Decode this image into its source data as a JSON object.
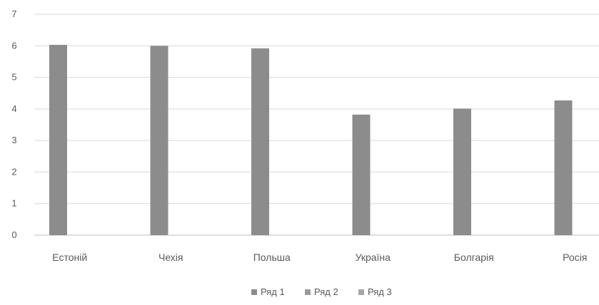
{
  "chart_data": {
    "type": "bar",
    "title": "",
    "xlabel": "",
    "ylabel": "",
    "categories": [
      "Естоній",
      "Чехія",
      "Польша",
      "Україна",
      "Болгарія",
      "Росія"
    ],
    "series": [
      {
        "name": "Ряд 1",
        "values": [
          6.03,
          6.0,
          5.92,
          3.82,
          4.01,
          4.27
        ]
      },
      {
        "name": "Ряд 2",
        "values": [
          null,
          null,
          null,
          null,
          null,
          null
        ]
      },
      {
        "name": "Ряд 3",
        "values": [
          null,
          null,
          null,
          null,
          null,
          null
        ]
      }
    ],
    "ylim": [
      0,
      7
    ],
    "yticks": [
      "0",
      "1",
      "2",
      "3",
      "4",
      "5",
      "6",
      "7"
    ],
    "grid": true,
    "legend_position": "bottom",
    "colors": {
      "series_1": "#8c8c8c",
      "series_2": "#9a9a9a",
      "series_3": "#a6a6a6",
      "gridline": "#d9d9d9",
      "axis": "#bfbfbf",
      "text": "#595959"
    }
  }
}
